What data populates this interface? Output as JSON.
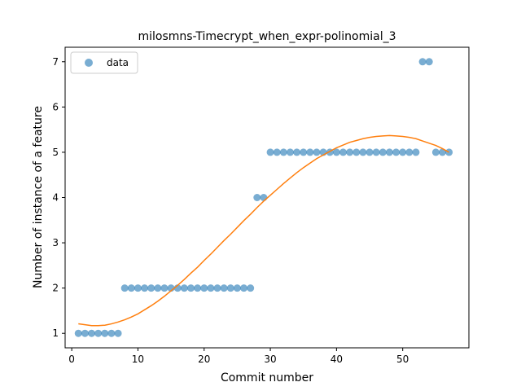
{
  "chart_data": {
    "type": "scatter",
    "title": "milosmns-Timecrypt_when_expr-polinomial_3",
    "xlabel": "Commit number",
    "ylabel": "Number of instance of a feature",
    "xlim": [
      -1,
      60
    ],
    "ylim": [
      0.68,
      7.32
    ],
    "xticks": [
      0,
      10,
      20,
      30,
      40,
      50
    ],
    "yticks": [
      1,
      2,
      3,
      4,
      5,
      6,
      7
    ],
    "grid": false,
    "legend_position": "top-left",
    "series": [
      {
        "name": "data",
        "kind": "scatter",
        "color": "#1f77b4",
        "x": [
          1,
          2,
          3,
          4,
          5,
          6,
          7,
          8,
          9,
          10,
          11,
          12,
          13,
          14,
          15,
          16,
          17,
          18,
          19,
          20,
          21,
          22,
          23,
          24,
          25,
          26,
          27,
          28,
          29,
          30,
          31,
          32,
          33,
          34,
          35,
          36,
          37,
          38,
          39,
          40,
          41,
          42,
          43,
          44,
          45,
          46,
          47,
          48,
          49,
          50,
          51,
          52,
          53,
          54,
          55,
          56,
          57
        ],
        "y": [
          1,
          1,
          1,
          1,
          1,
          1,
          1,
          2,
          2,
          2,
          2,
          2,
          2,
          2,
          2,
          2,
          2,
          2,
          2,
          2,
          2,
          2,
          2,
          2,
          2,
          2,
          2,
          4,
          4,
          5,
          5,
          5,
          5,
          5,
          5,
          5,
          5,
          5,
          5,
          5,
          5,
          5,
          5,
          5,
          5,
          5,
          5,
          5,
          5,
          5,
          5,
          5,
          7,
          7,
          5,
          5,
          5
        ]
      },
      {
        "kind": "line",
        "color": "#ff7f0e",
        "x": [
          1,
          2,
          3,
          4,
          5,
          6,
          7,
          8,
          9,
          10,
          11,
          12,
          13,
          14,
          15,
          16,
          17,
          18,
          19,
          20,
          21,
          22,
          23,
          24,
          25,
          26,
          27,
          28,
          29,
          30,
          31,
          32,
          33,
          34,
          35,
          36,
          37,
          38,
          39,
          40,
          41,
          42,
          43,
          44,
          45,
          46,
          47,
          48,
          49,
          50,
          51,
          52,
          53,
          54,
          55,
          56,
          57
        ],
        "y": [
          1.21,
          1.19,
          1.17,
          1.17,
          1.18,
          1.21,
          1.25,
          1.3,
          1.36,
          1.43,
          1.52,
          1.61,
          1.71,
          1.82,
          1.94,
          2.06,
          2.19,
          2.33,
          2.46,
          2.61,
          2.75,
          2.9,
          3.05,
          3.19,
          3.34,
          3.49,
          3.63,
          3.78,
          3.92,
          4.05,
          4.18,
          4.31,
          4.43,
          4.55,
          4.66,
          4.76,
          4.86,
          4.94,
          5.02,
          5.1,
          5.16,
          5.22,
          5.26,
          5.3,
          5.33,
          5.35,
          5.36,
          5.37,
          5.36,
          5.35,
          5.33,
          5.3,
          5.25,
          5.2,
          5.15,
          5.08,
          5.0
        ]
      }
    ]
  }
}
